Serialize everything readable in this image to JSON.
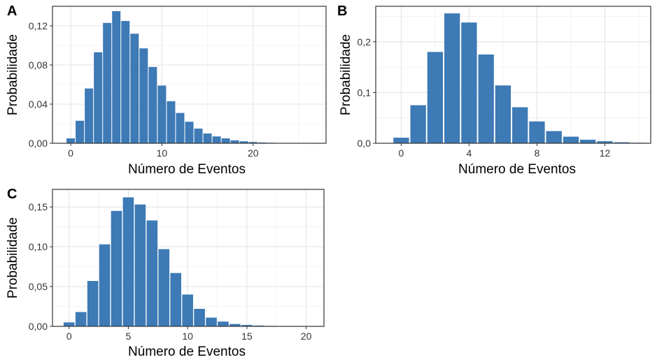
{
  "colors": {
    "bar": "#3d7ab6",
    "bar_edge": "#ffffff",
    "background": "#ffffff"
  },
  "chart_data": [
    {
      "panel": "A",
      "type": "bar",
      "xlabel": "Número de Eventos",
      "ylabel": "Probabilidade",
      "grid": true,
      "legend": "none",
      "xlim": [
        -2,
        28
      ],
      "ylim": [
        0,
        0.14
      ],
      "xticks": [
        0,
        10,
        20
      ],
      "xtick_labels": [
        "0",
        "10",
        "20"
      ],
      "yticks": [
        0,
        0.04,
        0.08,
        0.12
      ],
      "ytick_labels": [
        "0,00",
        "0,04",
        "0,08",
        "0,12"
      ],
      "x": [
        0,
        1,
        2,
        3,
        4,
        5,
        6,
        7,
        8,
        9,
        10,
        11,
        12,
        13,
        14,
        15,
        16,
        17,
        18,
        19,
        20,
        21,
        22,
        23,
        24,
        25,
        26,
        27
      ],
      "values": [
        0.005,
        0.023,
        0.056,
        0.093,
        0.123,
        0.135,
        0.125,
        0.112,
        0.097,
        0.078,
        0.059,
        0.043,
        0.031,
        0.022,
        0.015,
        0.01,
        0.007,
        0.005,
        0.003,
        0.002,
        0.0013,
        0.0008,
        0.0005,
        0.0003,
        0.0002,
        0.0001,
        6e-05,
        4e-05
      ]
    },
    {
      "panel": "B",
      "type": "bar",
      "xlabel": "Número de Eventos",
      "ylabel": "Probabilidade",
      "grid": true,
      "legend": "none",
      "xlim": [
        -1.5,
        14.7
      ],
      "ylim": [
        0,
        0.27
      ],
      "xticks": [
        0,
        4,
        8,
        12
      ],
      "xtick_labels": [
        "0",
        "4",
        "8",
        "12"
      ],
      "yticks": [
        0,
        0.1,
        0.2
      ],
      "ytick_labels": [
        "0,0",
        "0,1",
        "0,2"
      ],
      "x": [
        0,
        1,
        2,
        3,
        4,
        5,
        6,
        7,
        8,
        9,
        10,
        11,
        12,
        13,
        14
      ],
      "values": [
        0.011,
        0.075,
        0.18,
        0.256,
        0.238,
        0.175,
        0.114,
        0.071,
        0.043,
        0.024,
        0.013,
        0.007,
        0.004,
        0.002,
        0.001
      ]
    },
    {
      "panel": "C",
      "type": "bar",
      "xlabel": "Número de Eventos",
      "ylabel": "Probabilidade",
      "grid": true,
      "legend": "none",
      "xlim": [
        -1.4,
        21.5
      ],
      "ylim": [
        0,
        0.172
      ],
      "xticks": [
        0,
        5,
        10,
        15,
        20
      ],
      "xtick_labels": [
        "0",
        "5",
        "10",
        "15",
        "20"
      ],
      "yticks": [
        0,
        0.05,
        0.1,
        0.15
      ],
      "ytick_labels": [
        "0,00",
        "0,05",
        "0,10",
        "0,15"
      ],
      "x": [
        0,
        1,
        2,
        3,
        4,
        5,
        6,
        7,
        8,
        9,
        10,
        11,
        12,
        13,
        14,
        15,
        16,
        17,
        18,
        19,
        20
      ],
      "values": [
        0.005,
        0.018,
        0.057,
        0.103,
        0.145,
        0.162,
        0.153,
        0.133,
        0.097,
        0.067,
        0.04,
        0.022,
        0.011,
        0.006,
        0.003,
        0.0018,
        0.001,
        0.0006,
        0.0004,
        0.0002,
        0.0001
      ]
    }
  ]
}
